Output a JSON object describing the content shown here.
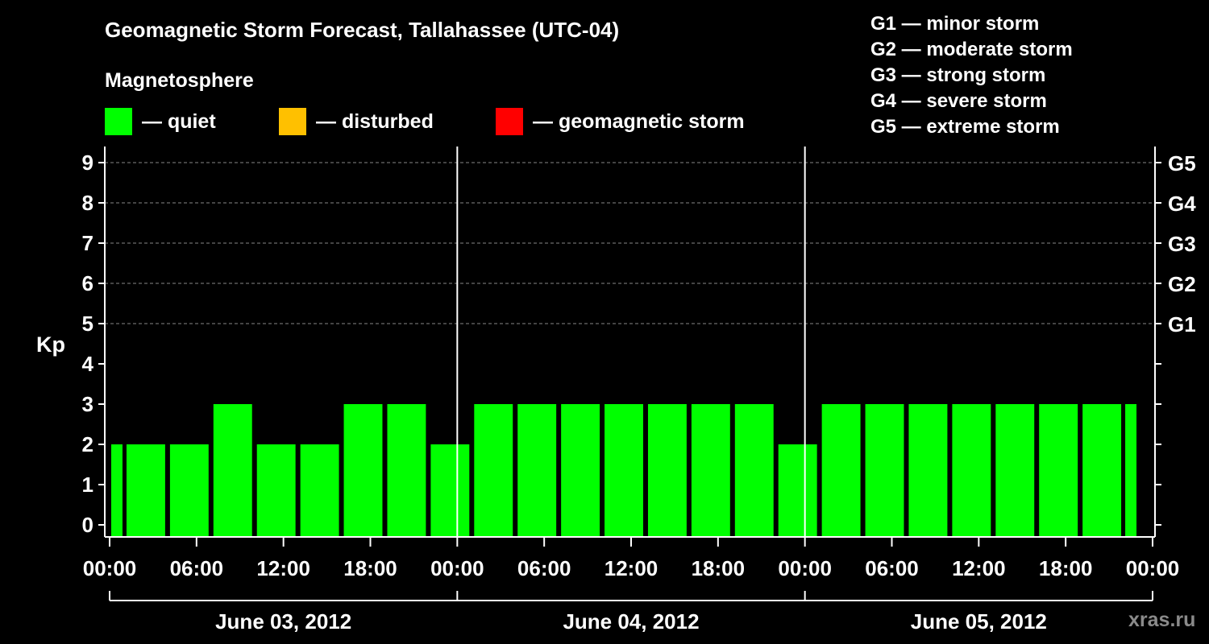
{
  "title": "Geomagnetic Storm Forecast, Tallahassee (UTC-04)",
  "magnetosphere_label": "Magnetosphere",
  "legend": [
    {
      "label": "— quiet",
      "color": "#00ff00"
    },
    {
      "label": "— disturbed",
      "color": "#ffc000"
    },
    {
      "label": "— geomagnetic storm",
      "color": "#ff0000"
    }
  ],
  "g_scale": [
    "G1 — minor storm",
    "G2 — moderate storm",
    "G3 — strong storm",
    "G4 — severe storm",
    "G5 — extreme storm"
  ],
  "watermark": "xras.ru",
  "chart_data": {
    "type": "bar",
    "ylabel": "Kp",
    "ylim": [
      0,
      9
    ],
    "y_ticks": [
      "0",
      "1",
      "2",
      "3",
      "4",
      "5",
      "6",
      "7",
      "8",
      "9"
    ],
    "right_ticks": [
      {
        "kp": 5,
        "label": "G1"
      },
      {
        "kp": 6,
        "label": "G2"
      },
      {
        "kp": 7,
        "label": "G3"
      },
      {
        "kp": 8,
        "label": "G4"
      },
      {
        "kp": 9,
        "label": "G5"
      }
    ],
    "x_tick_labels": [
      "00:00",
      "06:00",
      "12:00",
      "18:00",
      "00:00",
      "06:00",
      "12:00",
      "18:00",
      "00:00",
      "06:00",
      "12:00",
      "18:00",
      "00:00"
    ],
    "days": [
      "June 03, 2012",
      "June 04, 2012",
      "June 05, 2012"
    ],
    "grid": "horizontal dashed at Kp 5-9",
    "bar_color": "#00ff00",
    "bars": [
      {
        "start": "00:00",
        "end": "01:00",
        "kp": 2
      },
      {
        "start": "01:00",
        "end": "04:00",
        "kp": 2
      },
      {
        "start": "04:00",
        "end": "07:00",
        "kp": 2
      },
      {
        "start": "07:00",
        "end": "10:00",
        "kp": 3
      },
      {
        "start": "10:00",
        "end": "13:00",
        "kp": 2
      },
      {
        "start": "13:00",
        "end": "16:00",
        "kp": 2
      },
      {
        "start": "16:00",
        "end": "19:00",
        "kp": 3
      },
      {
        "start": "19:00",
        "end": "22:00",
        "kp": 3
      },
      {
        "start": "22:00",
        "end": "01:00",
        "kp": 2
      },
      {
        "start": "01:00",
        "end": "04:00",
        "kp": 3
      },
      {
        "start": "04:00",
        "end": "07:00",
        "kp": 3
      },
      {
        "start": "07:00",
        "end": "10:00",
        "kp": 3
      },
      {
        "start": "10:00",
        "end": "13:00",
        "kp": 3
      },
      {
        "start": "13:00",
        "end": "16:00",
        "kp": 3
      },
      {
        "start": "16:00",
        "end": "19:00",
        "kp": 3
      },
      {
        "start": "19:00",
        "end": "22:00",
        "kp": 3
      },
      {
        "start": "22:00",
        "end": "01:00",
        "kp": 2
      },
      {
        "start": "01:00",
        "end": "04:00",
        "kp": 3
      },
      {
        "start": "04:00",
        "end": "07:00",
        "kp": 3
      },
      {
        "start": "07:00",
        "end": "10:00",
        "kp": 3
      },
      {
        "start": "10:00",
        "end": "13:00",
        "kp": 3
      },
      {
        "start": "13:00",
        "end": "16:00",
        "kp": 3
      },
      {
        "start": "16:00",
        "end": "19:00",
        "kp": 3
      },
      {
        "start": "19:00",
        "end": "22:00",
        "kp": 3
      },
      {
        "start": "22:00",
        "end": "23:00",
        "kp": 3
      }
    ]
  }
}
